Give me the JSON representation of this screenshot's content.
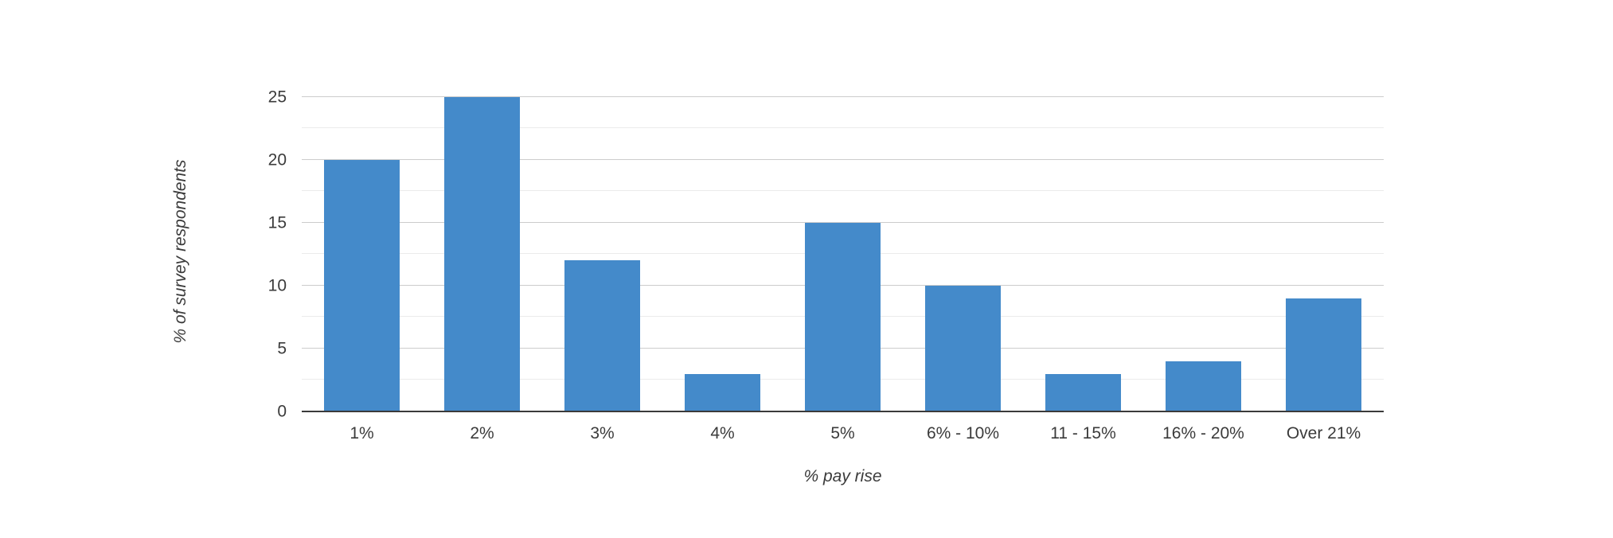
{
  "chart_data": {
    "type": "bar",
    "title": "",
    "xlabel": "% pay rise",
    "ylabel": "% of survey respondents",
    "categories": [
      "1%",
      "2%",
      "3%",
      "4%",
      "5%",
      "6% - 10%",
      "11 - 15%",
      "16% - 20%",
      "Over 21%"
    ],
    "values": [
      20,
      25,
      12,
      3,
      15,
      10,
      3,
      4,
      9
    ],
    "ylim": [
      0,
      27.5
    ],
    "yticks": [
      0,
      5,
      10,
      15,
      20,
      25
    ],
    "major_gridlines": [
      5,
      10,
      15,
      20,
      25
    ],
    "minor_gridlines": [
      2.5,
      7.5,
      12.5,
      17.5,
      22.5
    ],
    "grid": true,
    "legend": false,
    "colors": {
      "bar": "#448aca",
      "axis": "#3a3a3a",
      "major_grid": "#cccccc",
      "minor_grid": "#ebebeb",
      "text": "#3b3b3b",
      "background": "#ffffff"
    }
  }
}
